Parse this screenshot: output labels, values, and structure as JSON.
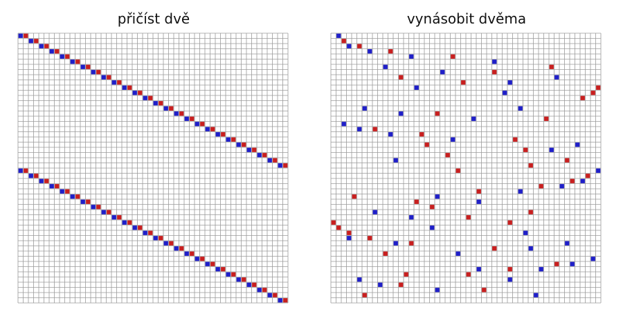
{
  "panels": [
    {
      "title": "přičíst dvě",
      "blue": [
        [
          0,
          0
        ],
        [
          1,
          2
        ],
        [
          2,
          4
        ],
        [
          3,
          6
        ],
        [
          4,
          8
        ],
        [
          5,
          10
        ],
        [
          6,
          12
        ],
        [
          7,
          14
        ],
        [
          8,
          16
        ],
        [
          9,
          18
        ],
        [
          10,
          20
        ],
        [
          11,
          22
        ],
        [
          12,
          24
        ],
        [
          13,
          26
        ],
        [
          14,
          28
        ],
        [
          15,
          30
        ],
        [
          16,
          32
        ],
        [
          17,
          34
        ],
        [
          18,
          36
        ],
        [
          19,
          38
        ],
        [
          20,
          40
        ],
        [
          21,
          42
        ],
        [
          22,
          44
        ],
        [
          23,
          46
        ],
        [
          24,
          48
        ],
        [
          25,
          50
        ],
        [
          26,
          0
        ],
        [
          27,
          2
        ],
        [
          28,
          4
        ],
        [
          29,
          6
        ],
        [
          30,
          8
        ],
        [
          31,
          10
        ],
        [
          32,
          12
        ],
        [
          33,
          14
        ],
        [
          34,
          16
        ],
        [
          35,
          18
        ],
        [
          36,
          20
        ],
        [
          37,
          22
        ],
        [
          38,
          24
        ],
        [
          39,
          26
        ],
        [
          40,
          28
        ],
        [
          41,
          30
        ],
        [
          42,
          32
        ],
        [
          43,
          34
        ],
        [
          44,
          36
        ],
        [
          45,
          38
        ],
        [
          46,
          40
        ],
        [
          47,
          42
        ],
        [
          48,
          44
        ],
        [
          49,
          46
        ],
        [
          50,
          48
        ],
        [
          51,
          50
        ]
      ],
      "red": [
        [
          0,
          1
        ],
        [
          1,
          3
        ],
        [
          2,
          5
        ],
        [
          3,
          7
        ],
        [
          4,
          9
        ],
        [
          5,
          11
        ],
        [
          6,
          13
        ],
        [
          7,
          15
        ],
        [
          8,
          17
        ],
        [
          9,
          19
        ],
        [
          10,
          21
        ],
        [
          11,
          23
        ],
        [
          12,
          25
        ],
        [
          13,
          27
        ],
        [
          14,
          29
        ],
        [
          15,
          31
        ],
        [
          16,
          33
        ],
        [
          17,
          35
        ],
        [
          18,
          37
        ],
        [
          19,
          39
        ],
        [
          20,
          41
        ],
        [
          21,
          43
        ],
        [
          22,
          45
        ],
        [
          23,
          47
        ],
        [
          24,
          49
        ],
        [
          25,
          51
        ],
        [
          26,
          1
        ],
        [
          27,
          3
        ],
        [
          28,
          5
        ],
        [
          29,
          7
        ],
        [
          30,
          9
        ],
        [
          31,
          11
        ],
        [
          32,
          13
        ],
        [
          33,
          15
        ],
        [
          34,
          17
        ],
        [
          35,
          19
        ],
        [
          36,
          21
        ],
        [
          37,
          23
        ],
        [
          38,
          25
        ],
        [
          39,
          27
        ],
        [
          40,
          29
        ],
        [
          41,
          31
        ],
        [
          42,
          33
        ],
        [
          43,
          35
        ],
        [
          44,
          37
        ],
        [
          45,
          39
        ],
        [
          46,
          41
        ],
        [
          47,
          43
        ],
        [
          48,
          45
        ],
        [
          49,
          47
        ],
        [
          50,
          49
        ],
        [
          51,
          51
        ]
      ]
    },
    {
      "title": "vynásobit dvěma",
      "blue": [
        [
          0,
          1
        ],
        [
          2,
          3
        ],
        [
          3,
          7
        ],
        [
          4,
          15
        ],
        [
          6,
          10
        ],
        [
          7,
          21
        ],
        [
          5,
          31
        ],
        [
          8,
          43
        ],
        [
          9,
          34
        ],
        [
          10,
          16
        ],
        [
          11,
          33
        ],
        [
          14,
          6
        ],
        [
          15,
          13
        ],
        [
          16,
          27
        ],
        [
          14,
          36
        ],
        [
          17,
          2
        ],
        [
          18,
          5
        ],
        [
          19,
          11
        ],
        [
          20,
          23
        ],
        [
          22,
          42
        ],
        [
          21,
          47
        ],
        [
          24,
          12
        ],
        [
          26,
          51
        ],
        [
          28,
          48
        ],
        [
          29,
          44
        ],
        [
          30,
          36
        ],
        [
          31,
          20
        ],
        [
          32,
          28
        ],
        [
          34,
          8
        ],
        [
          35,
          15
        ],
        [
          37,
          19
        ],
        [
          38,
          37
        ],
        [
          39,
          3
        ],
        [
          40,
          12
        ],
        [
          40,
          45
        ],
        [
          42,
          24
        ],
        [
          41,
          38
        ],
        [
          43,
          50
        ],
        [
          44,
          46
        ],
        [
          45,
          28
        ],
        [
          47,
          5
        ],
        [
          48,
          9
        ],
        [
          49,
          20
        ],
        [
          47,
          34
        ],
        [
          45,
          40
        ],
        [
          50,
          39
        ]
      ],
      "red": [
        [
          1,
          2
        ],
        [
          2,
          5
        ],
        [
          3,
          11
        ],
        [
          4,
          23
        ],
        [
          8,
          13
        ],
        [
          7,
          31
        ],
        [
          6,
          42
        ],
        [
          9,
          25
        ],
        [
          10,
          51
        ],
        [
          11,
          50
        ],
        [
          12,
          48
        ],
        [
          15,
          20
        ],
        [
          16,
          41
        ],
        [
          18,
          8
        ],
        [
          19,
          17
        ],
        [
          20,
          35
        ],
        [
          21,
          18
        ],
        [
          22,
          37
        ],
        [
          23,
          22
        ],
        [
          26,
          24
        ],
        [
          25,
          38
        ],
        [
          24,
          45
        ],
        [
          27,
          49
        ],
        [
          28,
          46
        ],
        [
          29,
          40
        ],
        [
          30,
          28
        ],
        [
          31,
          4
        ],
        [
          33,
          19
        ],
        [
          32,
          16
        ],
        [
          34,
          38
        ],
        [
          35,
          26
        ],
        [
          36,
          0
        ],
        [
          37,
          1
        ],
        [
          38,
          3
        ],
        [
          39,
          7
        ],
        [
          36,
          34
        ],
        [
          40,
          15
        ],
        [
          41,
          31
        ],
        [
          42,
          10
        ],
        [
          44,
          43
        ],
        [
          45,
          34
        ],
        [
          46,
          14
        ],
        [
          50,
          6
        ],
        [
          49,
          29
        ],
        [
          48,
          13
        ],
        [
          46,
          26
        ]
      ]
    }
  ]
}
